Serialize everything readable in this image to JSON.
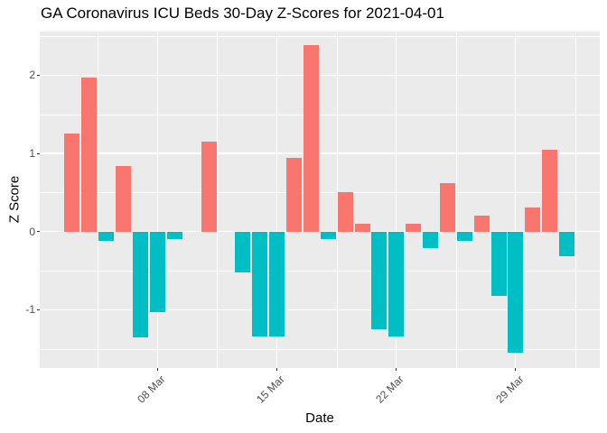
{
  "chart_data": {
    "type": "bar",
    "title": "GA Coronavirus ICU Beds 30-Day Z-Scores for 2021-04-01",
    "xlabel": "Date",
    "ylabel": "Z Score",
    "legend": "none",
    "grid": true,
    "dates": [
      "03 Mar",
      "04 Mar",
      "05 Mar",
      "06 Mar",
      "07 Mar",
      "08 Mar",
      "09 Mar",
      "10 Mar",
      "11 Mar",
      "12 Mar",
      "13 Mar",
      "14 Mar",
      "15 Mar",
      "16 Mar",
      "17 Mar",
      "18 Mar",
      "19 Mar",
      "20 Mar",
      "21 Mar",
      "22 Mar",
      "23 Mar",
      "24 Mar",
      "25 Mar",
      "26 Mar",
      "27 Mar",
      "28 Mar",
      "29 Mar",
      "30 Mar",
      "31 Mar",
      "01 Apr"
    ],
    "values": [
      1.26,
      1.97,
      -0.12,
      0.84,
      -1.35,
      -1.03,
      -0.1,
      0,
      1.15,
      0,
      -0.52,
      -1.34,
      -1.34,
      0.94,
      2.39,
      -0.1,
      0.51,
      0.1,
      -1.25,
      -1.34,
      0.1,
      -0.21,
      0.62,
      -0.12,
      0.2,
      -0.82,
      -1.55,
      0.31,
      1.05,
      -0.31
    ],
    "color_rule": "positive bars salmon red, negative bars teal, zero days empty",
    "x_ticks": [
      {
        "label": "08 Mar",
        "index": 5
      },
      {
        "label": "15 Mar",
        "index": 12
      },
      {
        "label": "22 Mar",
        "index": 19
      },
      {
        "label": "29 Mar",
        "index": 26
      }
    ],
    "y_ticks": [
      {
        "label": "2",
        "value": 2
      },
      {
        "label": "1",
        "value": 1
      },
      {
        "label": "0",
        "value": 0
      },
      {
        "label": "-1",
        "value": -1
      }
    ],
    "ylim": [
      -1.75,
      2.56
    ],
    "date_range": [
      "2021-03-03",
      "2021-04-01"
    ],
    "colors": {
      "positive": "#F8766D",
      "negative": "#00BFC4",
      "panel_background": "#EBEBEB",
      "gridline": "#FFFFFF",
      "tick_label": "#4D4D4D",
      "title": "#000000",
      "tick_mark": "#333333"
    }
  }
}
